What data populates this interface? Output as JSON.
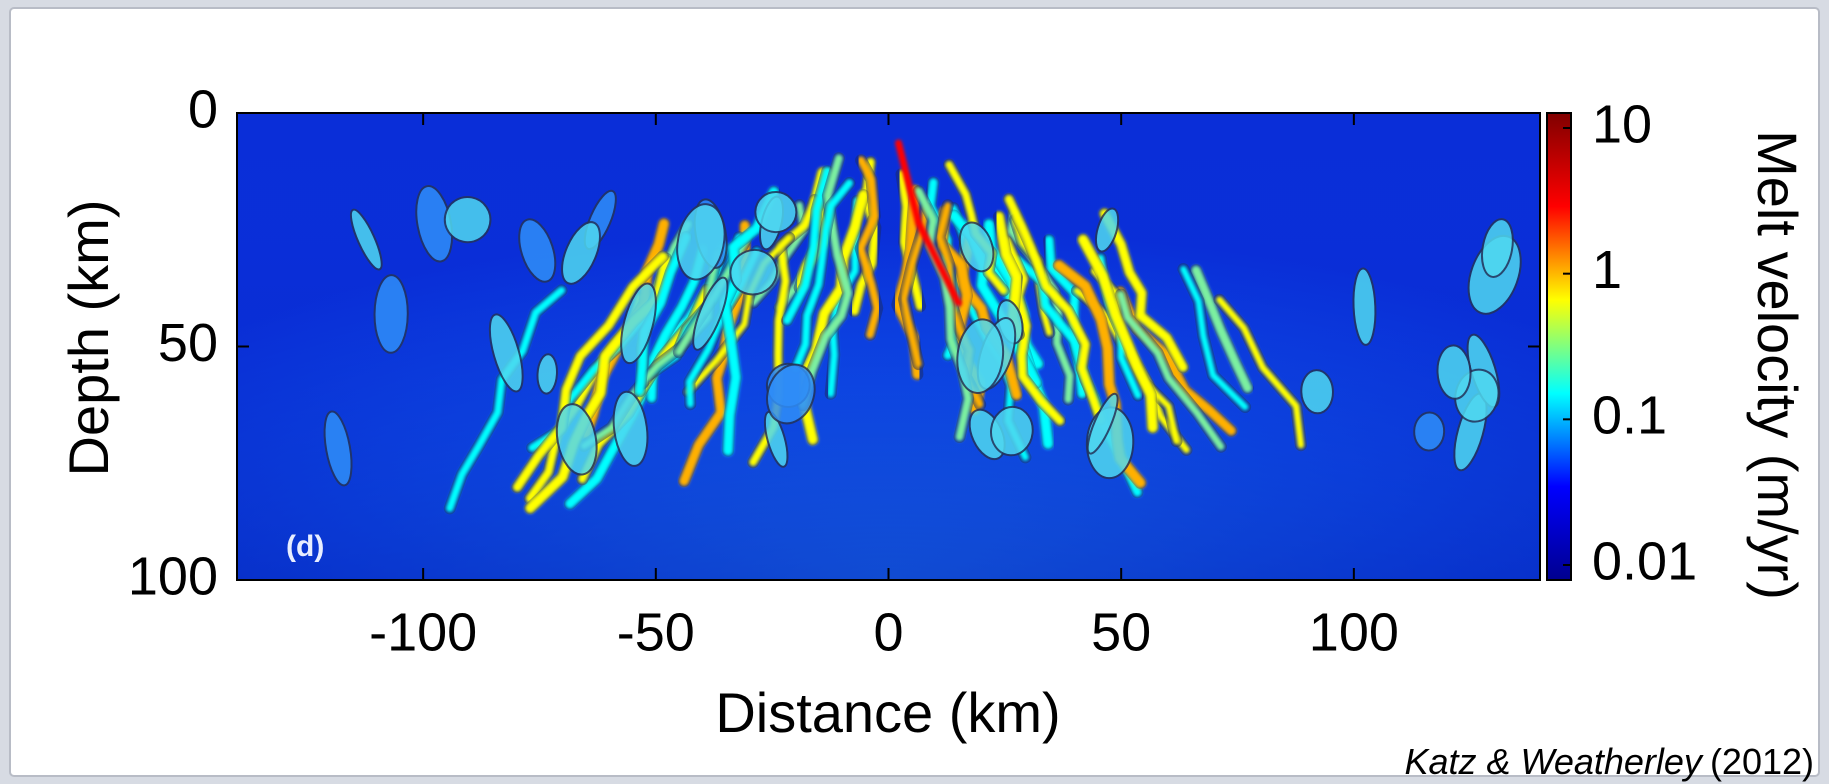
{
  "chart_data": {
    "type": "heatmap",
    "panel_label": "(d)",
    "xlabel": "Distance (km)",
    "ylabel": "Depth (km)",
    "xlim": [
      -140,
      140
    ],
    "xticks": [
      -100,
      -50,
      0,
      50,
      100
    ],
    "ylim": [
      0,
      100
    ],
    "yticks": [
      0,
      50,
      100
    ],
    "y_inverted": true,
    "colorbar": {
      "label": "Melt velocity (m/yr)",
      "log_scale": true,
      "lim": [
        0.01,
        10
      ],
      "ticks": [
        0.01,
        0.1,
        1,
        10
      ],
      "colormap": [
        "#00008f",
        "#0000ff",
        "#00ffff",
        "#ffff00",
        "#ff0000",
        "#800000"
      ]
    },
    "citation": {
      "authors": "Katz & Weatherley",
      "year": "(2012)"
    }
  }
}
